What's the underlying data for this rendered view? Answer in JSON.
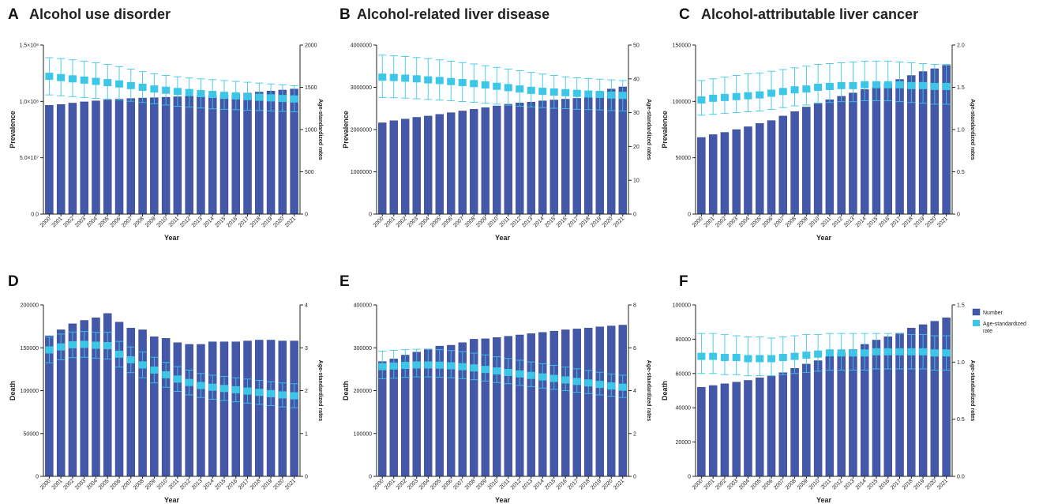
{
  "colors": {
    "bar": "#4358a8",
    "bar_edge": "#2b3b7e",
    "rate": "#3cc6e8",
    "axis": "#222222"
  },
  "legend": {
    "number_label": "Number",
    "rate_label_line1": "Age-standardized",
    "rate_label_line2": "rate"
  },
  "chart_data": [
    {
      "panel": "A",
      "type": "bar",
      "title": "Alcohol use disorder",
      "xlabel": "Year",
      "ylabel": "Prevalence",
      "y2label": "Age-standardized rates",
      "categories": [
        "2000",
        "2001",
        "2002",
        "2003",
        "2004",
        "2005",
        "2006",
        "2007",
        "2008",
        "2009",
        "2010",
        "2011",
        "2012",
        "2013",
        "2014",
        "2015",
        "2016",
        "2017",
        "2018",
        "2019",
        "2020",
        "2021"
      ],
      "ylim": [
        0,
        150000000
      ],
      "yticks": [
        0,
        50000000,
        100000000,
        150000000
      ],
      "yticklabels": [
        "0.0",
        "5.0×10⁷",
        "1.0×10⁸",
        "1.5×10⁸"
      ],
      "y2lim": [
        0,
        2000
      ],
      "y2ticks": [
        0,
        500,
        1000,
        1500,
        2000
      ],
      "series": [
        {
          "name": "Number",
          "values": [
            96500000,
            97300000,
            98500000,
            99600000,
            100500000,
            101300000,
            102000000,
            102600000,
            103000000,
            103300000,
            103700000,
            104100000,
            104500000,
            104800000,
            105100000,
            105700000,
            106500000,
            107400000,
            108300000,
            109200000,
            110100000,
            111000000
          ]
        },
        {
          "name": "Age-standardized rate",
          "values": [
            1630,
            1615,
            1600,
            1585,
            1570,
            1555,
            1540,
            1520,
            1500,
            1480,
            1465,
            1450,
            1438,
            1425,
            1415,
            1405,
            1398,
            1390,
            1382,
            1375,
            1368,
            1362
          ],
          "lower": [
            1410,
            1400,
            1390,
            1380,
            1370,
            1360,
            1350,
            1335,
            1320,
            1305,
            1290,
            1275,
            1265,
            1255,
            1245,
            1240,
            1235,
            1230,
            1225,
            1220,
            1215,
            1210
          ],
          "upper": [
            1850,
            1840,
            1825,
            1810,
            1790,
            1770,
            1745,
            1715,
            1685,
            1660,
            1640,
            1625,
            1610,
            1600,
            1590,
            1580,
            1570,
            1560,
            1550,
            1540,
            1530,
            1520
          ]
        }
      ]
    },
    {
      "panel": "B",
      "type": "bar",
      "title": "Alcohol-related liver disease",
      "xlabel": "Year",
      "ylabel": "Prevalence",
      "y2label": "Age-standardized rates",
      "categories": [
        "2000",
        "2001",
        "2002",
        "2003",
        "2004",
        "2005",
        "2006",
        "2007",
        "2008",
        "2009",
        "2010",
        "2011",
        "2012",
        "2013",
        "2014",
        "2015",
        "2016",
        "2017",
        "2018",
        "2019",
        "2020",
        "2021"
      ],
      "ylim": [
        0,
        4000000
      ],
      "yticks": [
        0,
        1000000,
        2000000,
        3000000,
        4000000
      ],
      "yticklabels": [
        "0",
        "1000000",
        "2000000",
        "3000000",
        "4000000"
      ],
      "y2lim": [
        0,
        50
      ],
      "y2ticks": [
        0,
        10,
        20,
        30,
        40,
        50
      ],
      "series": [
        {
          "name": "Number",
          "values": [
            2160000,
            2210000,
            2250000,
            2290000,
            2320000,
            2360000,
            2400000,
            2440000,
            2480000,
            2520000,
            2560000,
            2600000,
            2630000,
            2650000,
            2680000,
            2700000,
            2720000,
            2740000,
            2760000,
            2880000,
            2960000,
            3010000
          ]
        },
        {
          "name": "Age-standardized rate",
          "values": [
            40.5,
            40.4,
            40.2,
            40.0,
            39.7,
            39.5,
            39.2,
            38.9,
            38.6,
            38.2,
            37.8,
            37.4,
            37.0,
            36.6,
            36.3,
            36.1,
            35.9,
            35.7,
            35.5,
            35.4,
            35.2,
            35.1
          ],
          "lower": [
            34.5,
            34.4,
            34.3,
            34.1,
            33.9,
            33.7,
            33.5,
            33.3,
            33.1,
            32.8,
            32.5,
            32.2,
            31.9,
            31.7,
            31.5,
            31.3,
            31.2,
            31.0,
            30.9,
            30.8,
            30.6,
            30.5
          ],
          "upper": [
            47.0,
            46.8,
            46.6,
            46.3,
            46.0,
            45.6,
            45.2,
            44.8,
            44.4,
            43.9,
            43.4,
            42.9,
            42.4,
            41.9,
            41.4,
            41.0,
            40.6,
            40.3,
            40.1,
            39.9,
            39.7,
            39.5
          ]
        }
      ]
    },
    {
      "panel": "C",
      "type": "bar",
      "title": "Alcohol-attributable liver cancer",
      "xlabel": "Year",
      "ylabel": "Prevalence",
      "y2label": "Age-standardized rates",
      "categories": [
        "2000",
        "2001",
        "2002",
        "2003",
        "2004",
        "2005",
        "2006",
        "2007",
        "2008",
        "2009",
        "2010",
        "2011",
        "2012",
        "2013",
        "2014",
        "2015",
        "2016",
        "2017",
        "2018",
        "2019",
        "2020",
        "2021"
      ],
      "ylim": [
        0,
        150000
      ],
      "yticks": [
        0,
        50000,
        100000,
        150000
      ],
      "yticklabels": [
        "0",
        "50000",
        "100000",
        "150000"
      ],
      "y2lim": [
        0,
        2.0
      ],
      "y2ticks": [
        0,
        0.5,
        1.0,
        1.5,
        2.0
      ],
      "y2ticklabels": [
        "0",
        "0.5",
        "1.0",
        "1.5",
        "2.0"
      ],
      "series": [
        {
          "name": "Number",
          "values": [
            68000,
            70500,
            72500,
            75000,
            77500,
            80500,
            83000,
            87000,
            91000,
            95000,
            98500,
            101500,
            104500,
            107500,
            110500,
            113000,
            115500,
            119500,
            123000,
            126500,
            129000,
            132000
          ]
        },
        {
          "name": "Age-standardized rate",
          "values": [
            1.35,
            1.37,
            1.38,
            1.39,
            1.4,
            1.41,
            1.43,
            1.45,
            1.47,
            1.48,
            1.5,
            1.51,
            1.52,
            1.52,
            1.53,
            1.53,
            1.53,
            1.53,
            1.52,
            1.52,
            1.51,
            1.51
          ],
          "lower": [
            1.17,
            1.18,
            1.19,
            1.2,
            1.21,
            1.22,
            1.24,
            1.26,
            1.28,
            1.29,
            1.31,
            1.32,
            1.33,
            1.33,
            1.34,
            1.34,
            1.34,
            1.33,
            1.32,
            1.31,
            1.3,
            1.3
          ],
          "upper": [
            1.58,
            1.6,
            1.62,
            1.64,
            1.66,
            1.67,
            1.69,
            1.71,
            1.73,
            1.75,
            1.77,
            1.78,
            1.79,
            1.8,
            1.81,
            1.81,
            1.81,
            1.8,
            1.79,
            1.78,
            1.77,
            1.77
          ]
        }
      ]
    },
    {
      "panel": "D",
      "type": "bar",
      "title": "",
      "xlabel": "Year",
      "ylabel": "Death",
      "y2label": "Age-standardized rates",
      "categories": [
        "2000",
        "2001",
        "2002",
        "2003",
        "2004",
        "2005",
        "2006",
        "2007",
        "2008",
        "2009",
        "2010",
        "2011",
        "2012",
        "2013",
        "2014",
        "2015",
        "2016",
        "2017",
        "2018",
        "2019",
        "2020",
        "2021"
      ],
      "ylim": [
        0,
        200000
      ],
      "yticks": [
        0,
        50000,
        100000,
        150000,
        200000
      ],
      "yticklabels": [
        "0",
        "50000",
        "100000",
        "150000",
        "200000"
      ],
      "y2lim": [
        0,
        4
      ],
      "y2ticks": [
        0,
        1,
        2,
        3,
        4
      ],
      "series": [
        {
          "name": "Number",
          "values": [
            164000,
            171000,
            178000,
            182000,
            185000,
            190000,
            180000,
            173000,
            171000,
            163000,
            161000,
            156000,
            154000,
            154000,
            157000,
            157000,
            157000,
            158000,
            159000,
            159000,
            158000,
            158000
          ]
        },
        {
          "name": "Age-standardized rate",
          "values": [
            2.95,
            3.02,
            3.07,
            3.08,
            3.06,
            3.05,
            2.85,
            2.72,
            2.6,
            2.48,
            2.37,
            2.27,
            2.19,
            2.12,
            2.08,
            2.05,
            2.02,
            1.99,
            1.96,
            1.93,
            1.9,
            1.88
          ],
          "lower": [
            2.65,
            2.72,
            2.77,
            2.78,
            2.76,
            2.74,
            2.55,
            2.42,
            2.3,
            2.18,
            2.08,
            1.98,
            1.9,
            1.84,
            1.8,
            1.77,
            1.74,
            1.71,
            1.68,
            1.65,
            1.62,
            1.6
          ],
          "upper": [
            3.25,
            3.32,
            3.37,
            3.38,
            3.36,
            3.36,
            3.15,
            3.02,
            2.9,
            2.78,
            2.66,
            2.56,
            2.48,
            2.4,
            2.36,
            2.33,
            2.3,
            2.27,
            2.24,
            2.21,
            2.18,
            2.16
          ]
        }
      ]
    },
    {
      "panel": "E",
      "type": "bar",
      "title": "",
      "xlabel": "Year",
      "ylabel": "Death",
      "y2label": "Age-standardized rates",
      "categories": [
        "2000",
        "2001",
        "2002",
        "2003",
        "2004",
        "2005",
        "2006",
        "2007",
        "2008",
        "2009",
        "2010",
        "2011",
        "2012",
        "2013",
        "2014",
        "2015",
        "2016",
        "2017",
        "2018",
        "2019",
        "2020",
        "2021"
      ],
      "ylim": [
        0,
        400000
      ],
      "yticks": [
        0,
        100000,
        200000,
        300000,
        400000
      ],
      "yticklabels": [
        "0",
        "100000",
        "200000",
        "300000",
        "400000"
      ],
      "y2lim": [
        0,
        8
      ],
      "y2ticks": [
        0,
        2,
        4,
        6,
        8
      ],
      "series": [
        {
          "name": "Number",
          "values": [
            268000,
            274000,
            283000,
            290000,
            297000,
            304000,
            306000,
            312000,
            320000,
            321000,
            324000,
            327000,
            330000,
            333000,
            336000,
            339000,
            342000,
            344000,
            346000,
            349000,
            351000,
            353000
          ]
        },
        {
          "name": "Age-standardized rate",
          "values": [
            5.12,
            5.15,
            5.18,
            5.2,
            5.2,
            5.19,
            5.16,
            5.12,
            5.06,
            4.99,
            4.92,
            4.85,
            4.78,
            4.71,
            4.64,
            4.57,
            4.5,
            4.43,
            4.36,
            4.29,
            4.22,
            4.16
          ],
          "lower": [
            4.55,
            4.58,
            4.62,
            4.64,
            4.64,
            4.63,
            4.6,
            4.56,
            4.51,
            4.45,
            4.38,
            4.32,
            4.25,
            4.19,
            4.12,
            4.06,
            4.0,
            3.93,
            3.86,
            3.8,
            3.74,
            3.68
          ],
          "upper": [
            5.85,
            5.88,
            5.91,
            5.93,
            5.93,
            5.91,
            5.87,
            5.82,
            5.75,
            5.67,
            5.58,
            5.5,
            5.42,
            5.34,
            5.26,
            5.18,
            5.1,
            5.02,
            4.94,
            4.86,
            4.78,
            4.72
          ]
        }
      ]
    },
    {
      "panel": "F",
      "type": "bar",
      "title": "",
      "xlabel": "Year",
      "ylabel": "Death",
      "y2label": "Age-standardized rates",
      "categories": [
        "2000",
        "2001",
        "2002",
        "2003",
        "2004",
        "2005",
        "2006",
        "2007",
        "2008",
        "2009",
        "2010",
        "2011",
        "2012",
        "2013",
        "2014",
        "2015",
        "2016",
        "2017",
        "2018",
        "2019",
        "2020",
        "2021"
      ],
      "ylim": [
        0,
        100000
      ],
      "yticks": [
        0,
        20000,
        40000,
        60000,
        80000,
        100000
      ],
      "yticklabels": [
        "0",
        "20000",
        "40000",
        "60000",
        "80000",
        "100000"
      ],
      "y2lim": [
        0,
        1.5
      ],
      "y2ticks": [
        0,
        0.5,
        1.0,
        1.5
      ],
      "y2ticklabels": [
        "0.0",
        "0.5",
        "1.0",
        "1.5"
      ],
      "series": [
        {
          "name": "Number",
          "values": [
            52000,
            53000,
            54000,
            55000,
            56000,
            57500,
            58500,
            60500,
            63000,
            65500,
            67500,
            70000,
            72000,
            74000,
            77000,
            79500,
            81500,
            83500,
            86500,
            88500,
            90500,
            92500
          ]
        },
        {
          "name": "Age-standardized rate",
          "values": [
            1.05,
            1.05,
            1.04,
            1.04,
            1.03,
            1.03,
            1.03,
            1.04,
            1.05,
            1.06,
            1.07,
            1.08,
            1.08,
            1.08,
            1.08,
            1.09,
            1.09,
            1.09,
            1.09,
            1.09,
            1.08,
            1.08
          ],
          "lower": [
            0.9,
            0.9,
            0.89,
            0.89,
            0.88,
            0.88,
            0.88,
            0.89,
            0.9,
            0.91,
            0.92,
            0.93,
            0.93,
            0.93,
            0.93,
            0.94,
            0.94,
            0.94,
            0.94,
            0.94,
            0.93,
            0.93
          ],
          "upper": [
            1.25,
            1.25,
            1.24,
            1.23,
            1.22,
            1.22,
            1.21,
            1.22,
            1.23,
            1.24,
            1.24,
            1.25,
            1.25,
            1.25,
            1.25,
            1.25,
            1.25,
            1.25,
            1.24,
            1.24,
            1.23,
            1.23
          ]
        }
      ],
      "legend": "top-right"
    }
  ]
}
